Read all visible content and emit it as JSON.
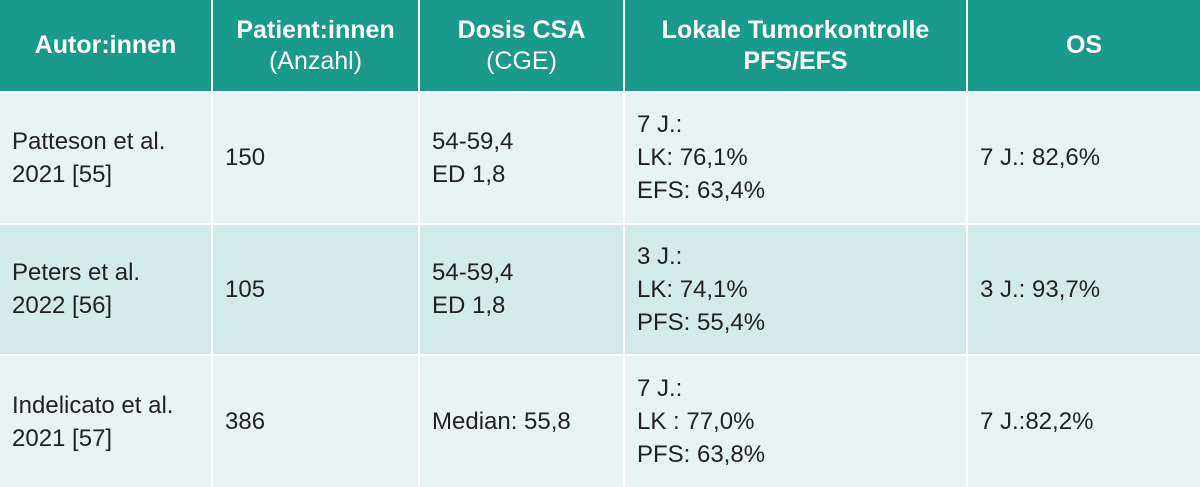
{
  "columns": [
    {
      "title": "Autor:innen",
      "subtitle": ""
    },
    {
      "title": "Patient:innen",
      "subtitle": "(Anzahl)"
    },
    {
      "title": "Dosis CSA",
      "subtitle": "(CGE)"
    },
    {
      "title": "Lokale Tumorkontrolle",
      "subtitle": "PFS/EFS"
    },
    {
      "title": "OS",
      "subtitle": ""
    }
  ],
  "rows": [
    {
      "author": [
        "Patteson et al.",
        "2021 [55]"
      ],
      "patients": "150",
      "dose": [
        "54-59,4",
        "ED 1,8"
      ],
      "control": [
        "7 J.:",
        "LK: 76,1%",
        "EFS: 63,4%"
      ],
      "os": "7 J.: 82,6%"
    },
    {
      "author": [
        "Peters et al.",
        "2022 [56]"
      ],
      "patients": "105",
      "dose": [
        "54-59,4",
        "ED 1,8"
      ],
      "control": [
        "3 J.:",
        "LK: 74,1%",
        "PFS: 55,4%"
      ],
      "os": "3 J.: 93,7%"
    },
    {
      "author": [
        "Indelicato et al.",
        "2021 [57]"
      ],
      "patients": "386",
      "dose": [
        "Median: 55,8"
      ],
      "control": [
        "7 J.:",
        "LK : 77,0%",
        "PFS: 63,8%"
      ],
      "os": "7 J.:82,2%"
    }
  ],
  "colors": {
    "header_bg": "#1a9a8b",
    "row_light": "#e7f4f3",
    "row_dark": "#d4eae8",
    "text": "#222222"
  }
}
